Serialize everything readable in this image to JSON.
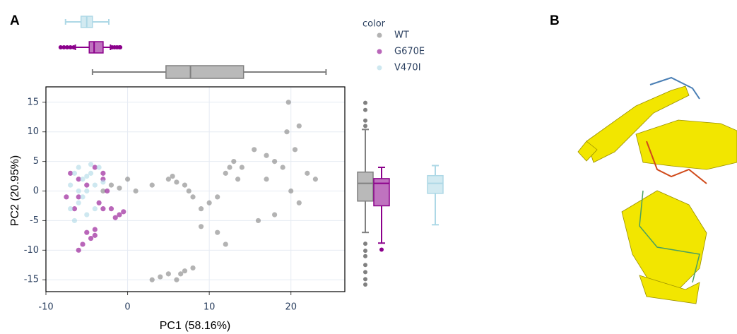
{
  "panels": [
    "A",
    "B"
  ],
  "chart_data": {
    "type": "scatter",
    "legend_title": "color",
    "xlabel": "PC1 (58.16%)",
    "ylabel": "PC2 (20.95%)",
    "xlim": [
      -10,
      26.6
    ],
    "ylim": [
      -17,
      17.6
    ],
    "xticks": [
      -10,
      0,
      10,
      20
    ],
    "yticks": [
      -15,
      -10,
      -5,
      0,
      5,
      10,
      15
    ],
    "grid": true,
    "series": [
      {
        "name": "WT",
        "color": "#808080",
        "x": [
          -2,
          -1,
          0,
          1,
          3,
          5,
          5.5,
          6,
          7,
          7.5,
          8,
          9,
          10,
          11,
          12,
          12.5,
          13,
          14,
          13.5,
          16,
          17,
          18,
          19,
          20,
          21,
          22,
          20.5,
          19.5,
          23,
          18,
          3,
          4,
          5,
          6,
          7,
          8,
          6.5,
          12,
          17,
          19.7,
          -3,
          11,
          9,
          15.5,
          21
        ],
        "values": [
          1,
          0.5,
          2,
          0,
          1,
          2,
          2.5,
          1.5,
          1,
          0,
          -1,
          -3,
          -2,
          -1,
          3,
          4,
          5,
          4,
          2,
          -5,
          2,
          5,
          4,
          0,
          -2,
          3,
          7,
          10,
          2,
          -4,
          -15,
          -14.5,
          -14,
          -15,
          -13.5,
          -13,
          -14,
          -9,
          6,
          15,
          0,
          -7,
          -6,
          7,
          11
        ],
        "x_box": {
          "low": -4.3,
          "q1": 4.7,
          "median": 7.7,
          "q3": 14.2,
          "high": 24.3
        },
        "y_box": {
          "low": -7.0,
          "q1": -1.7,
          "median": 1.3,
          "q3": 3.2,
          "high": 10.4,
          "outliers": [
            14.9,
            13.7,
            11.9,
            11,
            -8.9,
            -10.1,
            -11,
            -12.5,
            -13.7,
            -14.9,
            -15.8
          ]
        }
      },
      {
        "name": "G670E",
        "color": "#8b008b",
        "x": [
          -7,
          -6,
          -5,
          -7.5,
          -6.5,
          -4,
          -3,
          -2.5,
          -3.5,
          -3,
          -2,
          -1,
          -0.5,
          -5,
          -4.5,
          -4,
          -5.5,
          -6,
          -3,
          -6,
          -1.5,
          -4
        ],
        "values": [
          3,
          2,
          1,
          -1,
          -3,
          4,
          2,
          0,
          -2,
          -3,
          -3,
          -4,
          -3.5,
          -7,
          -8,
          -6.5,
          -9,
          -10,
          3,
          -1,
          -4.5,
          -7.5
        ],
        "x_box": {
          "low": -6.4,
          "q1": -4.7,
          "median": -4.1,
          "q3": -3.0,
          "high": -2.1,
          "outliers": [
            -8.2,
            -7.8,
            -7.4,
            -7,
            -6.6,
            -1.9,
            -1.6,
            -1.3,
            -1,
            -0.9
          ]
        },
        "y_box": {
          "low": -8.8,
          "q1": -2.5,
          "median": 1.3,
          "q3": 2.1,
          "high": 4.0,
          "outliers": [
            -9.9
          ]
        }
      },
      {
        "name": "V470I",
        "color": "#add8e6",
        "x": [
          -7,
          -6.5,
          -6,
          -5.5,
          -5,
          -4.5,
          -4,
          -3.5,
          -6,
          -5,
          -6.5,
          -4,
          -5.5,
          -3,
          -7,
          -4.5,
          -5,
          -6
        ],
        "values": [
          1,
          3,
          4,
          2,
          0,
          3,
          1,
          4,
          -2,
          -4,
          -5,
          -3,
          -1,
          1.5,
          -3,
          4.5,
          2.5,
          0
        ],
        "x_box": {
          "low": -7.6,
          "q1": -5.7,
          "median": -5.0,
          "q3": -4.3,
          "high": -2.3
        },
        "y_box": {
          "low": -5.7,
          "q1": -0.4,
          "median": 1.3,
          "q3": 2.6,
          "high": 4.3
        }
      }
    ]
  }
}
